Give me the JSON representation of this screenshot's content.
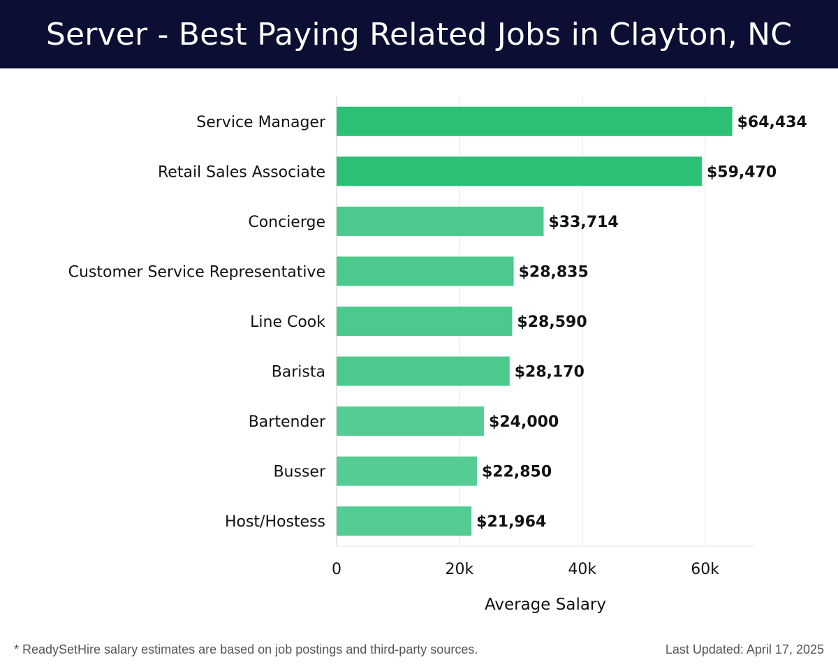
{
  "header": {
    "title": "Server - Best Paying Related Jobs in Clayton, NC"
  },
  "chart_data": {
    "type": "bar",
    "orientation": "horizontal",
    "title": "Server - Best Paying Related Jobs in Clayton, NC",
    "xlabel": "Average Salary",
    "ylabel": "",
    "categories": [
      "Service Manager",
      "Retail Sales Associate",
      "Concierge",
      "Customer Service Representative",
      "Line Cook",
      "Barista",
      "Bartender",
      "Busser",
      "Host/Hostess"
    ],
    "values": [
      64434,
      59470,
      33714,
      28835,
      28590,
      28170,
      24000,
      22850,
      21964
    ],
    "value_labels": [
      "$64,434",
      "$59,470",
      "$33,714",
      "$28,835",
      "$28,590",
      "$28,170",
      "$24,000",
      "$22,850",
      "$21,964"
    ],
    "xlim": [
      0,
      68000
    ],
    "xticks": [
      0,
      20000,
      40000,
      60000
    ],
    "xtick_labels": [
      "0",
      "20k",
      "40k",
      "60k"
    ],
    "grid": "vertical",
    "bar_colors": [
      "#2cbf76",
      "#2cbf76",
      "#4cc98c",
      "#4cc98c",
      "#4cc98c",
      "#4cc98c",
      "#55cc93",
      "#55cc93",
      "#55cc93"
    ]
  },
  "footer": {
    "note": "* ReadySetHire salary estimates are based on job postings and third-party sources.",
    "updated": "Last Updated: April 17, 2025"
  }
}
